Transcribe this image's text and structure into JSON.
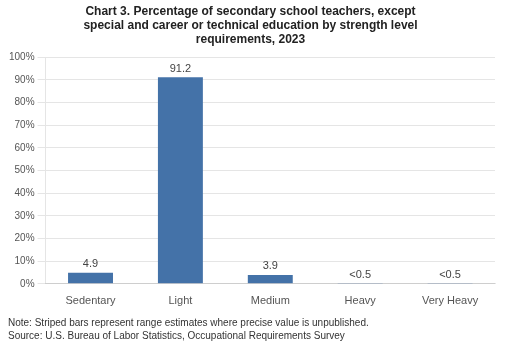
{
  "chart_data": {
    "type": "bar",
    "title": "Chart 3. Percentage of secondary school teachers, except\nspecial and career or technical education by strength level\nrequirements, 2023",
    "categories": [
      "Sedentary",
      "Light",
      "Medium",
      "Heavy",
      "Very Heavy"
    ],
    "values": [
      4.9,
      91.2,
      3.9,
      0.3,
      0.3
    ],
    "value_labels": [
      "4.9",
      "91.2",
      "3.9",
      "<0.5",
      "<0.5"
    ],
    "data_labels": true,
    "color": "#4472a8",
    "ylim": [
      0,
      100
    ],
    "yticks": [
      {
        "value": 0,
        "label": "0%"
      },
      {
        "value": 10,
        "label": "10%"
      },
      {
        "value": 20,
        "label": "20%"
      },
      {
        "value": 30,
        "label": "30%"
      },
      {
        "value": 40,
        "label": "40%"
      },
      {
        "value": 50,
        "label": "50%"
      },
      {
        "value": 60,
        "label": "60%"
      },
      {
        "value": 70,
        "label": "70%"
      },
      {
        "value": 80,
        "label": "80%"
      },
      {
        "value": 90,
        "label": "90%"
      },
      {
        "value": 100,
        "label": "100%"
      }
    ],
    "grid": true,
    "annotations": [
      "Note: Striped bars represent range estimates where precise value is unpublished.",
      "Source: U.S. Bureau of Labor Statistics, Occupational Requirements Survey"
    ]
  }
}
